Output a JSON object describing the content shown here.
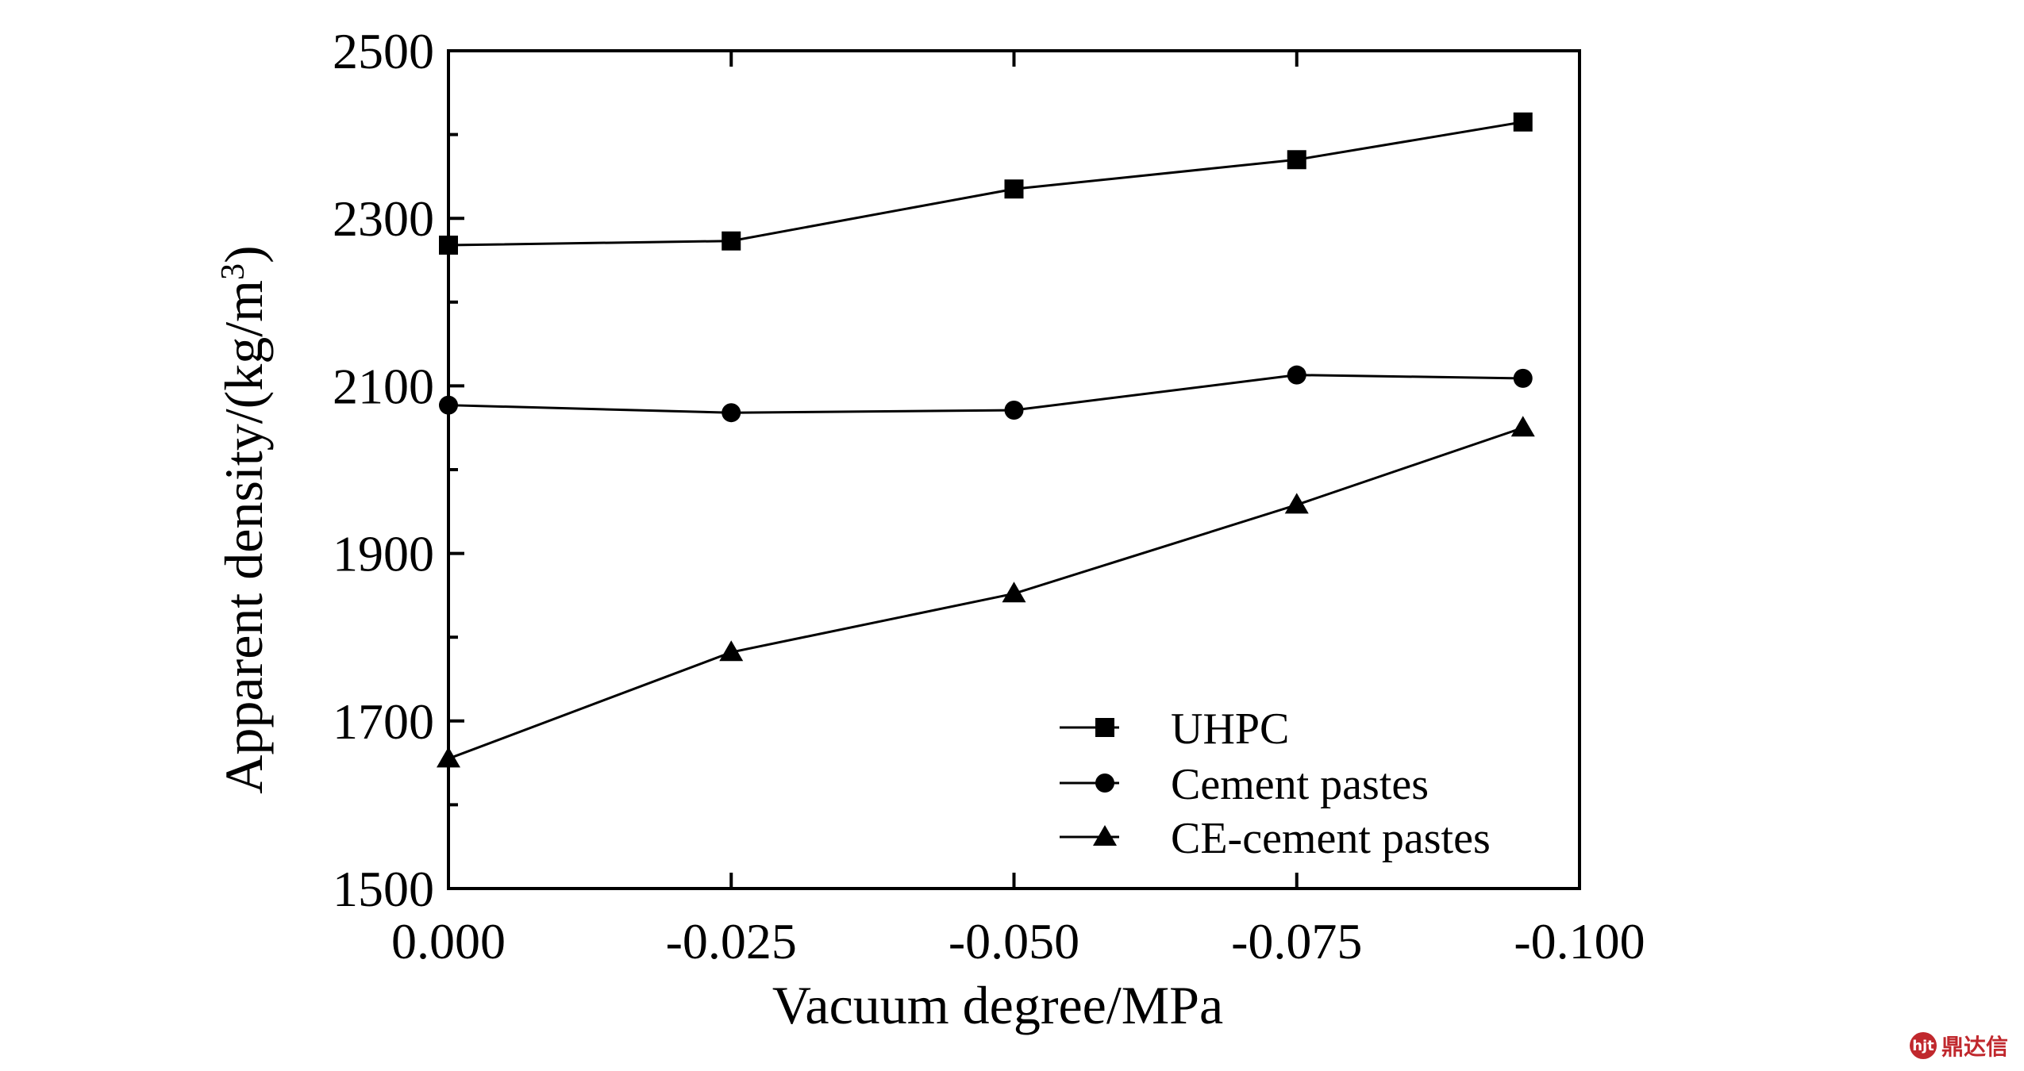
{
  "chart_data": {
    "type": "line",
    "xlabel": "Vacuum degree/MPa",
    "ylabel": "Apparent density/(kg/m³)",
    "ylabel_main": "Apparent density/(kg/m",
    "ylabel_sup": "3",
    "ylabel_close": ")",
    "xlim": [
      0,
      -0.1
    ],
    "ylim": [
      1500,
      2500
    ],
    "x_ticks": [
      0,
      -0.025,
      -0.05,
      -0.075,
      -0.1
    ],
    "x_tick_labels": [
      "0.000",
      "-0.025",
      "-0.050",
      "-0.075",
      "-0.100"
    ],
    "y_ticks": [
      1500,
      1700,
      1900,
      2100,
      2300,
      2500
    ],
    "y_tick_labels": [
      "1500",
      "1700",
      "1900",
      "2100",
      "2300",
      "2500"
    ],
    "grid": false,
    "legend_position": "bottom-right",
    "x": [
      0,
      -0.025,
      -0.05,
      -0.075,
      -0.095
    ],
    "series": [
      {
        "name": "UHPC",
        "marker": "square",
        "values": [
          2268,
          2273,
          2335,
          2370,
          2415
        ]
      },
      {
        "name": "Cement pastes",
        "marker": "circle",
        "values": [
          2077,
          2068,
          2071,
          2113,
          2109
        ]
      },
      {
        "name": "CE-cement pastes",
        "marker": "triangle",
        "values": [
          1655,
          1782,
          1852,
          1958,
          2050
        ]
      }
    ]
  },
  "watermark": {
    "logo": "hjt",
    "text": "鼎达信"
  },
  "colors": {
    "ink": "#000000",
    "watermark": "#c0282d"
  }
}
